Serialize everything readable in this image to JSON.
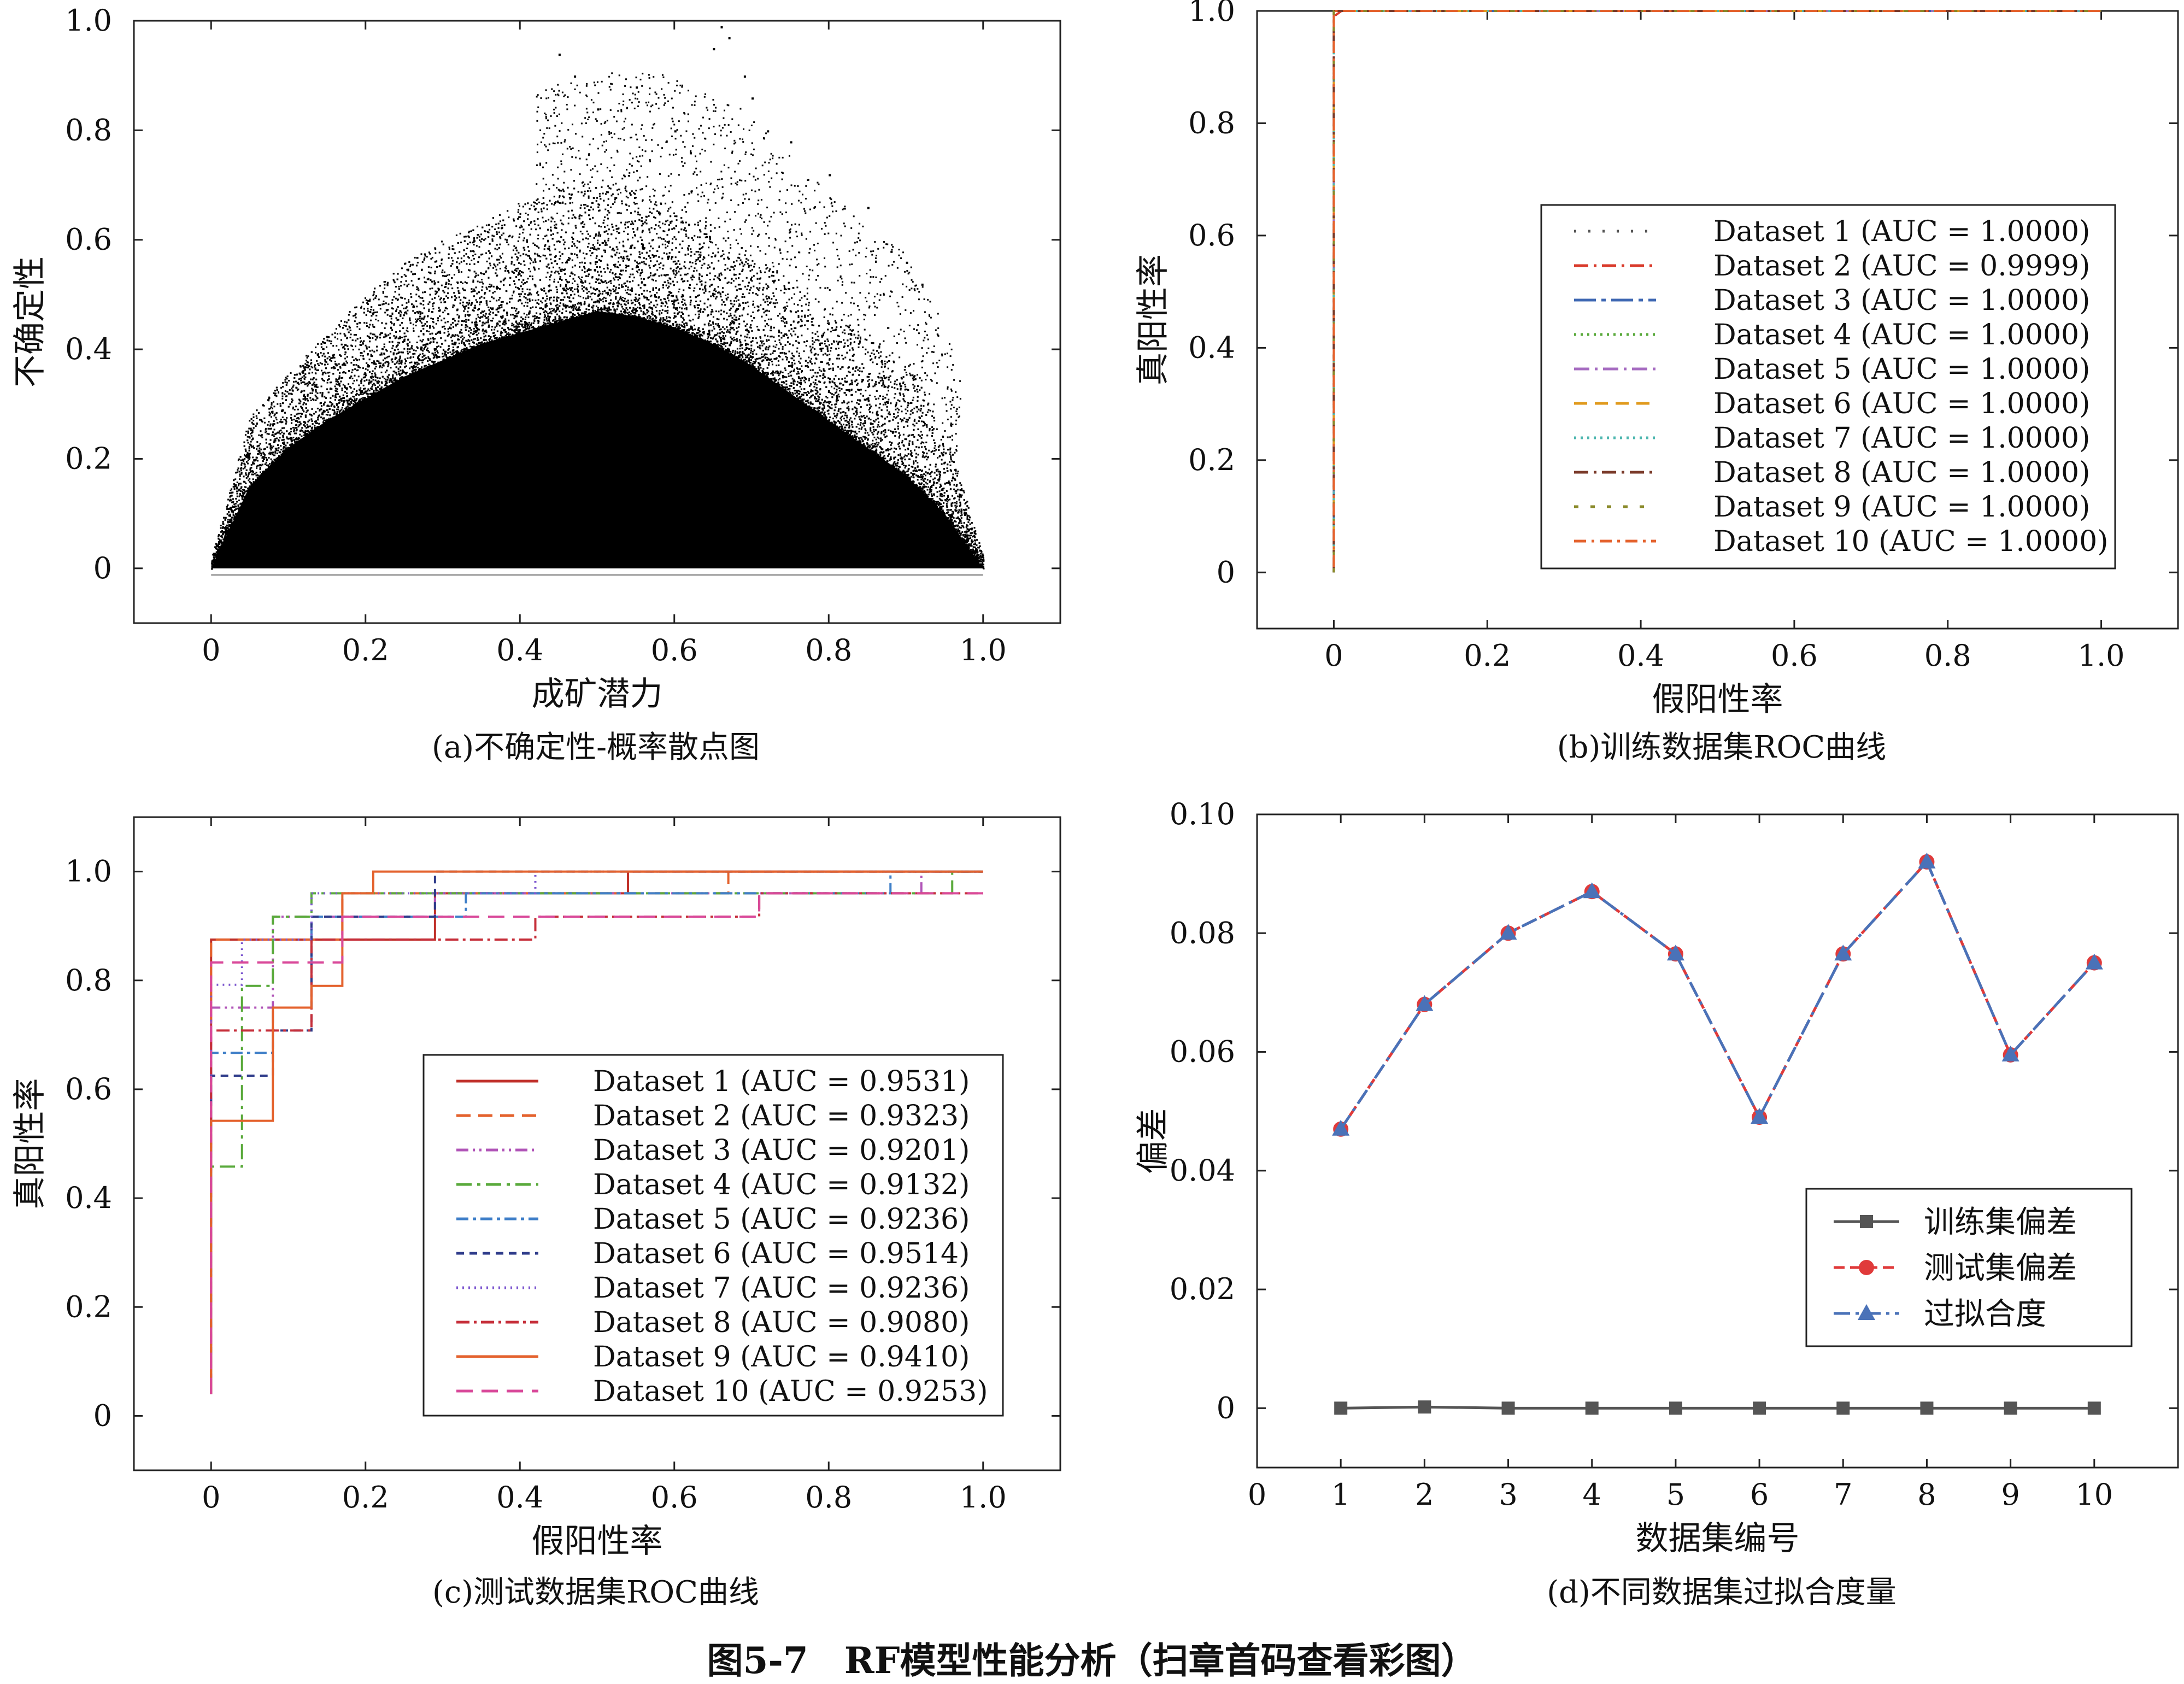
{
  "figure": {
    "main_caption": "图5-7　RF模型性能分析（扫章首码查看彩图）",
    "panel_captions": {
      "a": "(a)不确定性-概率散点图",
      "b": "(b)训练数据集ROC曲线",
      "c": "(c)测试数据集ROC曲线",
      "d": "(d)不同数据集过拟合度量"
    }
  },
  "chart_data": [
    {
      "id": "a",
      "type": "scatter",
      "xlabel": "成矿潜力",
      "ylabel": "不确定性",
      "xlim": [
        -0.1,
        1.1
      ],
      "ylim": [
        -0.1,
        1.0
      ],
      "xticks": [
        "0",
        "0.2",
        "0.4",
        "0.6",
        "0.8",
        "1.0"
      ],
      "yticks": [
        "0",
        "0.2",
        "0.4",
        "0.6",
        "0.8",
        "1.0"
      ],
      "color": "#000000",
      "envelope_x": [
        0,
        0.05,
        0.1,
        0.15,
        0.2,
        0.25,
        0.3,
        0.35,
        0.4,
        0.45,
        0.5,
        0.55,
        0.6,
        0.65,
        0.7,
        0.75,
        0.8,
        0.85,
        0.9,
        0.95,
        1.0
      ],
      "envelope_upper": [
        0.02,
        0.28,
        0.36,
        0.43,
        0.5,
        0.56,
        0.6,
        0.63,
        0.67,
        0.7,
        0.7,
        0.69,
        0.67,
        0.62,
        0.58,
        0.52,
        0.47,
        0.42,
        0.38,
        0.26,
        0.02
      ],
      "envelope_core": [
        0.0,
        0.15,
        0.22,
        0.27,
        0.31,
        0.35,
        0.38,
        0.41,
        0.43,
        0.45,
        0.47,
        0.46,
        0.44,
        0.41,
        0.37,
        0.32,
        0.27,
        0.22,
        0.17,
        0.1,
        0.0
      ],
      "sparse_points": [
        [
          0.45,
          0.94
        ],
        [
          0.47,
          0.9
        ],
        [
          0.5,
          0.84
        ],
        [
          0.55,
          0.88
        ],
        [
          0.6,
          0.8
        ],
        [
          0.62,
          0.76
        ],
        [
          0.65,
          0.95
        ],
        [
          0.66,
          0.99
        ],
        [
          0.67,
          0.97
        ],
        [
          0.69,
          0.9
        ],
        [
          0.7,
          0.86
        ],
        [
          0.72,
          0.8
        ],
        [
          0.75,
          0.78
        ],
        [
          0.8,
          0.72
        ],
        [
          0.85,
          0.66
        ],
        [
          0.88,
          0.58
        ],
        [
          0.9,
          0.56
        ],
        [
          0.92,
          0.52
        ],
        [
          0.65,
          0.14
        ],
        [
          0.66,
          0.13
        ]
      ]
    },
    {
      "id": "b",
      "type": "line",
      "xlabel": "假阳性率",
      "ylabel": "真阳性率",
      "xlim": [
        -0.1,
        1.1
      ],
      "ylim": [
        -0.1,
        1.0
      ],
      "xticks": [
        "0",
        "0.2",
        "0.4",
        "0.6",
        "0.8",
        "1.0"
      ],
      "yticks": [
        "0",
        "0.2",
        "0.4",
        "0.6",
        "0.8",
        "1.0"
      ],
      "legend_position": "center-right",
      "series": [
        {
          "name": "Dataset 1 (AUC = 1.0000)",
          "color": "#555555",
          "dash": "4,22",
          "x": [
            0,
            0,
            1
          ],
          "y": [
            0,
            1,
            1
          ]
        },
        {
          "name": "Dataset 2 (AUC = 0.9999)",
          "color": "#d93a2b",
          "dash": "26,10,5,10",
          "x": [
            0,
            0,
            0.01,
            1
          ],
          "y": [
            0,
            0.99,
            1,
            1
          ]
        },
        {
          "name": "Dataset 3 (AUC = 1.0000)",
          "color": "#3f68b3",
          "dash": "40,10,8,10",
          "x": [
            0,
            0,
            1
          ],
          "y": [
            0,
            1,
            1
          ]
        },
        {
          "name": "Dataset 4 (AUC = 1.0000)",
          "color": "#5aaa3c",
          "dash": "4,8",
          "x": [
            0,
            0,
            1
          ],
          "y": [
            0,
            1,
            1
          ]
        },
        {
          "name": "Dataset 5 (AUC = 1.0000)",
          "color": "#a66cc1",
          "dash": "28,10,5,10",
          "x": [
            0,
            0,
            1
          ],
          "y": [
            0,
            1,
            1
          ]
        },
        {
          "name": "Dataset 6 (AUC = 1.0000)",
          "color": "#e09a1d",
          "dash": "24,14",
          "x": [
            0,
            0,
            1
          ],
          "y": [
            0,
            1,
            1
          ]
        },
        {
          "name": "Dataset 7 (AUC = 1.0000)",
          "color": "#4fb7b0",
          "dash": "4,8",
          "x": [
            0,
            0,
            1
          ],
          "y": [
            0,
            1,
            1
          ]
        },
        {
          "name": "Dataset 8 (AUC = 1.0000)",
          "color": "#7a3a2a",
          "dash": "26,10,5,10",
          "x": [
            0,
            0,
            1
          ],
          "y": [
            0,
            1,
            1
          ]
        },
        {
          "name": "Dataset 9 (AUC = 1.0000)",
          "color": "#8a8a2a",
          "dash": "8,22",
          "x": [
            0,
            0,
            1
          ],
          "y": [
            0,
            1,
            1
          ]
        },
        {
          "name": "Dataset 10 (AUC = 1.0000)",
          "color": "#e4622d",
          "dash": "22,10,5,10",
          "x": [
            0,
            0,
            1
          ],
          "y": [
            0.01,
            1,
            1
          ]
        }
      ]
    },
    {
      "id": "c",
      "type": "line",
      "xlabel": "假阳性率",
      "ylabel": "真阳性率",
      "xlim": [
        -0.1,
        1.1
      ],
      "ylim": [
        -0.1,
        1.1
      ],
      "xticks": [
        "0",
        "0.2",
        "0.4",
        "0.6",
        "0.8",
        "1.0"
      ],
      "yticks": [
        "0",
        "0.2",
        "0.4",
        "0.6",
        "0.8",
        "1.0"
      ],
      "legend_position": "lower-right",
      "series": [
        {
          "name": "Dataset 1 (AUC = 0.9531)",
          "color": "#c0302a",
          "dash": "",
          "x": [
            0,
            0,
            0.29,
            0.29,
            0.54,
            0.54,
            1
          ],
          "y": [
            0.04,
            0.875,
            0.875,
            0.96,
            0.96,
            1,
            1
          ]
        },
        {
          "name": "Dataset 2 (AUC = 0.9323)",
          "color": "#e4622d",
          "dash": "26,14",
          "x": [
            0,
            0,
            0.17,
            0.17,
            0.67,
            0.67,
            1
          ],
          "y": [
            0.04,
            0.875,
            0.875,
            0.96,
            0.96,
            1,
            1
          ]
        },
        {
          "name": "Dataset 3 (AUC = 0.9201)",
          "color": "#b155b8",
          "dash": "22,8,4,8,4,8",
          "x": [
            0,
            0,
            0.08,
            0.08,
            0.29,
            0.29,
            0.92,
            0.92,
            1
          ],
          "y": [
            0.04,
            0.75,
            0.75,
            0.917,
            0.917,
            0.96,
            0.96,
            1,
            1
          ]
        },
        {
          "name": "Dataset 4 (AUC = 0.9132)",
          "color": "#5aaa3c",
          "dash": "28,10,6,10",
          "x": [
            0,
            0,
            0.04,
            0.04,
            0.08,
            0.08,
            0.13,
            0.13,
            0.96,
            0.96,
            1
          ],
          "y": [
            0.04,
            0.458,
            0.458,
            0.79,
            0.79,
            0.917,
            0.917,
            0.96,
            0.96,
            1,
            1
          ]
        },
        {
          "name": "Dataset 5 (AUC = 0.9236)",
          "color": "#3f7fc8",
          "dash": "22,8,6,8",
          "x": [
            0,
            0,
            0.08,
            0.08,
            0.13,
            0.13,
            0.33,
            0.33,
            0.88,
            0.88,
            1
          ],
          "y": [
            0.04,
            0.667,
            0.667,
            0.75,
            0.75,
            0.917,
            0.917,
            0.96,
            0.96,
            1,
            1
          ]
        },
        {
          "name": "Dataset 6 (AUC = 0.9514)",
          "color": "#2e3b8a",
          "dash": "14,10",
          "x": [
            0,
            0,
            0.08,
            0.08,
            0.13,
            0.13,
            0.29,
            0.29,
            1
          ],
          "y": [
            0.04,
            0.625,
            0.625,
            0.708,
            0.708,
            0.917,
            0.917,
            1,
            1
          ]
        },
        {
          "name": "Dataset 7 (AUC = 0.9236)",
          "color": "#7f5ad0",
          "dash": "3,8",
          "x": [
            0,
            0,
            0.04,
            0.04,
            0.13,
            0.13,
            0.42,
            0.42,
            1
          ],
          "y": [
            0.04,
            0.792,
            0.792,
            0.875,
            0.875,
            0.96,
            0.96,
            1,
            1
          ]
        },
        {
          "name": "Dataset 8 (AUC = 0.9080)",
          "color": "#c62f3a",
          "dash": "24,8,5,8",
          "x": [
            0,
            0,
            0.13,
            0.13,
            0.42,
            0.42,
            0.71,
            0.71,
            1
          ],
          "y": [
            0.04,
            0.708,
            0.708,
            0.875,
            0.875,
            0.917,
            0.917,
            0.96,
            0.96
          ]
        },
        {
          "name": "Dataset 9 (AUC = 0.9410)",
          "color": "#e4622d",
          "dash": "",
          "x": [
            0,
            0,
            0.08,
            0.08,
            0.13,
            0.13,
            0.17,
            0.17,
            0.21,
            0.21,
            1
          ],
          "y": [
            0.04,
            0.542,
            0.542,
            0.75,
            0.75,
            0.79,
            0.79,
            0.96,
            0.96,
            1,
            1
          ]
        },
        {
          "name": "Dataset 10 (AUC = 0.9253)",
          "color": "#d9499a",
          "dash": "30,16",
          "x": [
            0,
            0,
            0.17,
            0.17,
            0.42,
            0.42,
            0.71,
            0.71,
            1
          ],
          "y": [
            0.04,
            0.833,
            0.833,
            0.917,
            0.917,
            0.917,
            0.917,
            0.96,
            0.96
          ]
        }
      ]
    },
    {
      "id": "d",
      "type": "line",
      "xlabel": "数据集编号",
      "ylabel": "偏差",
      "xlim": [
        0,
        11
      ],
      "ylim": [
        -0.01,
        0.1
      ],
      "xticks": [
        "0",
        "1",
        "2",
        "3",
        "4",
        "5",
        "6",
        "7",
        "8",
        "9",
        "10"
      ],
      "yticks": [
        "0",
        "0.02",
        "0.04",
        "0.06",
        "0.08",
        "0.10"
      ],
      "legend_position": "lower-right",
      "categories": [
        1,
        2,
        3,
        4,
        5,
        6,
        7,
        8,
        9,
        10
      ],
      "series": [
        {
          "name": "训练集偏差",
          "color": "#555555",
          "dash": "",
          "marker": "square",
          "values": [
            0.0,
            0.0002,
            0.0,
            0.0,
            0.0,
            0.0,
            0.0,
            0.0,
            0.0,
            0.0
          ]
        },
        {
          "name": "测试集偏差",
          "color": "#e03a3a",
          "dash": "20,10",
          "marker": "circle",
          "values": [
            0.047,
            0.068,
            0.08,
            0.087,
            0.0765,
            0.049,
            0.0765,
            0.092,
            0.0595,
            0.075
          ]
        },
        {
          "name": "过拟合度",
          "color": "#4a72b8",
          "dash": "30,10,6,10",
          "marker": "triangle",
          "values": [
            0.047,
            0.068,
            0.08,
            0.087,
            0.0765,
            0.049,
            0.0765,
            0.092,
            0.0595,
            0.075
          ]
        }
      ]
    }
  ]
}
